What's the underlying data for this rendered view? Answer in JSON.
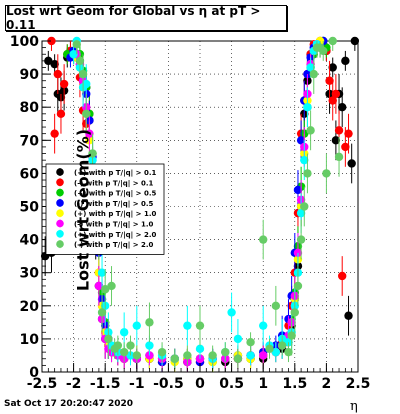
{
  "chart_data": {
    "type": "scatter",
    "title": "Lost wrt Geom for Global vs   η at pT > 0.11",
    "ylabel": "Lost wrt Geom(%)",
    "xlabel": "η",
    "footer": "Sat Oct 17 20:20:47 2020",
    "xlim": [
      -2.5,
      2.5
    ],
    "ylim": [
      0,
      100
    ],
    "x_ticks": [
      "-2.5",
      "-2",
      "-1.5",
      "-1",
      "-0.5",
      "0",
      "0.5",
      "1",
      "1.5",
      "2",
      "2.5"
    ],
    "y_ticks": [
      "0",
      "10",
      "20",
      "30",
      "40",
      "50",
      "60",
      "70",
      "80",
      "90",
      "100"
    ],
    "grid": true,
    "legend_position": "left",
    "series": [
      {
        "name": "(+) with p T/|q| > 0.1",
        "color": "#000000",
        "x": [
          -2.45,
          -2.4,
          -2.35,
          -2.3,
          -2.25,
          -2.2,
          -2.15,
          -2.1,
          -2.05,
          -2.0,
          -1.95,
          -1.9,
          -1.85,
          -1.8,
          -1.75,
          -1.7,
          -1.65,
          -1.6,
          -1.55,
          -1.5,
          -1.45,
          -1.4,
          -1.3,
          -1.2,
          -1.0,
          -0.8,
          -0.6,
          -0.4,
          -0.2,
          0.0,
          0.2,
          0.4,
          0.6,
          0.8,
          1.0,
          1.2,
          1.3,
          1.4,
          1.45,
          1.5,
          1.55,
          1.6,
          1.65,
          1.7,
          1.75,
          1.8,
          1.85,
          1.9,
          1.95,
          2.0,
          2.05,
          2.1,
          2.15,
          2.2,
          2.25,
          2.3,
          2.35,
          2.4,
          2.45
        ],
        "y": [
          35,
          94,
          36,
          93,
          84,
          83,
          85,
          95,
          97,
          96,
          95,
          94,
          88,
          86,
          76,
          60,
          40,
          26,
          16,
          10,
          8,
          6,
          5,
          4,
          4,
          4,
          3,
          4,
          3,
          4,
          4,
          3,
          4,
          5,
          4,
          6,
          7,
          9,
          14,
          22,
          32,
          50,
          78,
          88,
          96,
          97,
          98,
          98,
          99,
          97,
          84,
          92,
          70,
          84,
          80,
          94,
          17,
          63,
          100
        ]
      },
      {
        "name": "(-) with p T/|q| > 0.1",
        "color": "#ff0000",
        "x": [
          -2.35,
          -2.3,
          -2.25,
          -2.2,
          -2.15,
          -2.1,
          -2.05,
          -2.0,
          -1.95,
          -1.9,
          -1.85,
          -1.8,
          -1.75,
          -1.7,
          -1.65,
          -1.6,
          -1.55,
          -1.5,
          -1.45,
          -1.4,
          -1.3,
          -1.2,
          -1.0,
          -0.8,
          -0.6,
          -0.4,
          -0.2,
          0.0,
          0.2,
          0.4,
          0.6,
          0.8,
          1.0,
          1.2,
          1.3,
          1.4,
          1.45,
          1.5,
          1.55,
          1.6,
          1.65,
          1.7,
          1.75,
          1.8,
          1.85,
          1.9,
          1.95,
          2.0,
          2.05,
          2.1,
          2.15,
          2.2,
          2.25,
          2.3,
          2.35
        ],
        "y": [
          100,
          72,
          90,
          78,
          87,
          96,
          97,
          97,
          95,
          89,
          79,
          75,
          78,
          62,
          48,
          30,
          20,
          12,
          8,
          6,
          5,
          4,
          4,
          4,
          3,
          4,
          4,
          3,
          4,
          4,
          4,
          4,
          5,
          6,
          9,
          14,
          20,
          30,
          48,
          72,
          82,
          90,
          96,
          99,
          98,
          100,
          99,
          97,
          88,
          82,
          84,
          73,
          29,
          68,
          72
        ]
      },
      {
        "name": "(+) with p T/|q| > 0.5",
        "color": "#00cc00",
        "x": [
          -2.1,
          -2.0,
          -1.9,
          -1.85,
          -1.8,
          -1.75,
          -1.7,
          -1.65,
          -1.6,
          -1.55,
          -1.5,
          -1.45,
          -1.4,
          -1.3,
          -1.2,
          -1.0,
          -0.8,
          -0.6,
          -0.4,
          -0.2,
          0.0,
          0.2,
          0.4,
          0.6,
          0.8,
          1.0,
          1.2,
          1.3,
          1.4,
          1.45,
          1.5,
          1.55,
          1.6,
          1.65,
          1.7,
          1.75,
          1.8,
          1.85,
          1.9,
          1.95,
          2.0
        ],
        "y": [
          96,
          97,
          96,
          91,
          86,
          78,
          66,
          55,
          38,
          24,
          15,
          10,
          7,
          5,
          5,
          4,
          5,
          4,
          4,
          3,
          4,
          3,
          4,
          5,
          4,
          5,
          6,
          8,
          11,
          16,
          24,
          38,
          56,
          72,
          80,
          92,
          96,
          99,
          99,
          100,
          98
        ]
      },
      {
        "name": "(-) with p T/|q| > 0.5",
        "color": "#0000ff",
        "x": [
          -2.05,
          -2.0,
          -1.95,
          -1.9,
          -1.85,
          -1.8,
          -1.75,
          -1.7,
          -1.65,
          -1.6,
          -1.55,
          -1.5,
          -1.45,
          -1.4,
          -1.3,
          -1.2,
          -1.0,
          -0.8,
          -0.6,
          -0.4,
          -0.2,
          0.0,
          0.2,
          0.4,
          0.6,
          0.8,
          1.0,
          1.2,
          1.3,
          1.4,
          1.45,
          1.5,
          1.55,
          1.6,
          1.65,
          1.7,
          1.75,
          1.8,
          1.85,
          1.9,
          1.95
        ],
        "y": [
          95,
          97,
          96,
          93,
          88,
          84,
          76,
          65,
          55,
          36,
          22,
          14,
          10,
          7,
          5,
          4,
          4,
          4,
          3,
          4,
          4,
          3,
          4,
          4,
          5,
          5,
          6,
          8,
          11,
          16,
          23,
          36,
          55,
          70,
          82,
          90,
          95,
          98,
          99,
          99,
          100
        ]
      },
      {
        "name": "(+) with p T/|q| > 1.0",
        "color": "#ffff00",
        "x": [
          -1.95,
          -1.9,
          -1.85,
          -1.8,
          -1.75,
          -1.7,
          -1.65,
          -1.6,
          -1.55,
          -1.5,
          -1.45,
          -1.4,
          -1.3,
          -1.2,
          -1.0,
          -0.8,
          -0.6,
          -0.4,
          -0.2,
          0.0,
          0.2,
          0.4,
          0.6,
          0.8,
          1.0,
          1.2,
          1.3,
          1.4,
          1.45,
          1.5,
          1.55,
          1.6,
          1.65,
          1.7,
          1.75,
          1.8,
          1.85,
          1.9
        ],
        "y": [
          95,
          92,
          86,
          78,
          70,
          62,
          50,
          30,
          20,
          12,
          8,
          6,
          5,
          4,
          5,
          4,
          4,
          3,
          4,
          4,
          3,
          4,
          5,
          4,
          5,
          6,
          8,
          10,
          15,
          22,
          34,
          50,
          66,
          82,
          93,
          97,
          99,
          100
        ]
      },
      {
        "name": "(-) with p T/|q| > 1.0",
        "color": "#ff00ff",
        "x": [
          -1.95,
          -1.9,
          -1.85,
          -1.8,
          -1.75,
          -1.7,
          -1.65,
          -1.6,
          -1.55,
          -1.5,
          -1.45,
          -1.4,
          -1.3,
          -1.2,
          -1.0,
          -0.8,
          -0.6,
          -0.4,
          -0.2,
          0.0,
          0.2,
          0.4,
          0.6,
          0.8,
          1.0,
          1.2,
          1.3,
          1.4,
          1.45,
          1.5,
          1.55,
          1.6,
          1.65,
          1.7,
          1.75,
          1.8,
          1.85
        ],
        "y": [
          96,
          93,
          88,
          80,
          72,
          58,
          42,
          26,
          16,
          10,
          7,
          6,
          5,
          4,
          4,
          5,
          4,
          4,
          3,
          4,
          4,
          4,
          4,
          5,
          5,
          6,
          8,
          11,
          15,
          23,
          36,
          52,
          68,
          84,
          93,
          97,
          99
        ]
      },
      {
        "name": "(+) with p T/|q| > 2.0",
        "color": "#00ffff",
        "x": [
          -2.0,
          -1.95,
          -1.9,
          -1.85,
          -1.8,
          -1.7,
          -1.6,
          -1.55,
          -1.5,
          -1.45,
          -1.4,
          -1.3,
          -1.2,
          -1.1,
          -1.0,
          -0.8,
          -0.6,
          -0.4,
          -0.2,
          0.0,
          0.2,
          0.4,
          0.5,
          0.6,
          0.8,
          1.0,
          1.1,
          1.2,
          1.3,
          1.4,
          1.45,
          1.5,
          1.55,
          1.6,
          1.65,
          1.7,
          1.75,
          1.8,
          1.85
        ],
        "y": [
          96,
          100,
          92,
          86,
          87,
          64,
          45,
          30,
          20,
          12,
          8,
          6,
          12,
          5,
          14,
          8,
          5,
          4,
          14,
          7,
          4,
          6,
          18,
          10,
          5,
          14,
          8,
          6,
          10,
          9,
          12,
          20,
          30,
          48,
          64,
          80,
          92,
          97,
          99
        ]
      },
      {
        "name": "(-) with p T/|q| > 2.0",
        "color": "#66cc66",
        "x": [
          -1.95,
          -1.9,
          -1.85,
          -1.8,
          -1.7,
          -1.6,
          -1.55,
          -1.5,
          -1.45,
          -1.4,
          -1.35,
          -1.3,
          -1.2,
          -1.1,
          -1.0,
          -0.8,
          -0.6,
          -0.4,
          -0.2,
          0.0,
          0.2,
          0.4,
          0.6,
          0.8,
          1.0,
          1.1,
          1.2,
          1.3,
          1.4,
          1.45,
          1.5,
          1.55,
          1.6,
          1.65,
          1.7,
          1.75,
          1.8,
          1.85,
          1.9,
          1.95,
          2.0,
          2.1,
          2.2
        ],
        "y": [
          99,
          94,
          90,
          78,
          66,
          40,
          18,
          25,
          10,
          26,
          7,
          8,
          6,
          8,
          5,
          15,
          6,
          4,
          5,
          14,
          5,
          6,
          4,
          9,
          40,
          7,
          20,
          8,
          6,
          11,
          18,
          26,
          40,
          50,
          60,
          73,
          90,
          98,
          98,
          97,
          60,
          100,
          65
        ]
      }
    ]
  }
}
